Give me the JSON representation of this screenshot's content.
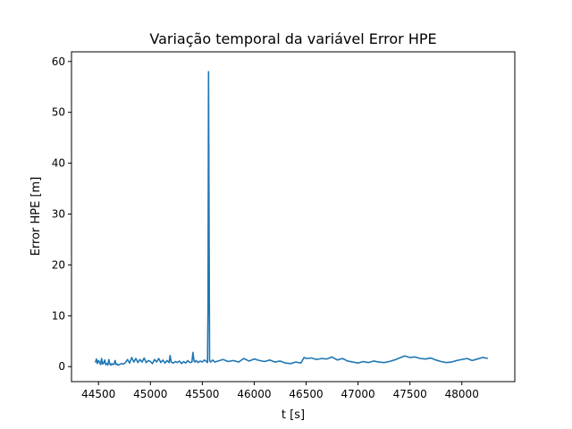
{
  "chart_data": {
    "type": "line",
    "title": "Variação temporal da variável Error HPE",
    "xlabel": "t [s]",
    "ylabel": "Error HPE [m]",
    "xlim": [
      44240,
      48510
    ],
    "ylim": [
      -2.95,
      61.9
    ],
    "xticks": [
      44500,
      45000,
      45500,
      46000,
      46500,
      47000,
      47500,
      48000
    ],
    "yticks": [
      0,
      10,
      20,
      30,
      40,
      50,
      60
    ],
    "grid": false,
    "legend": "none",
    "colors": {
      "series": "#1f77b4"
    },
    "series": [
      {
        "x": [
          44470,
          44480,
          44490,
          44500,
          44510,
          44520,
          44530,
          44540,
          44550,
          44560,
          44570,
          44580,
          44590,
          44600,
          44610,
          44620,
          44630,
          44640,
          44650,
          44660,
          44670,
          44680,
          44690,
          44700,
          44720,
          44740,
          44760,
          44780,
          44800,
          44820,
          44840,
          44860,
          44880,
          44900,
          44920,
          44940,
          44960,
          44980,
          45000,
          45020,
          45040,
          45060,
          45080,
          45100,
          45120,
          45140,
          45160,
          45180,
          45190,
          45200,
          45220,
          45240,
          45260,
          45280,
          45300,
          45320,
          45340,
          45360,
          45380,
          45400,
          45410,
          45420,
          45430,
          45440,
          45460,
          45480,
          45500,
          45520,
          45540,
          45550,
          45555,
          45560,
          45565,
          45570,
          45575,
          45580,
          45600,
          45620,
          45650,
          45700,
          45750,
          45800,
          45850,
          45900,
          45950,
          46000,
          46050,
          46100,
          46150,
          46200,
          46250,
          46300,
          46350,
          46400,
          46450,
          46480,
          46500,
          46550,
          46600,
          46650,
          46700,
          46750,
          46800,
          46850,
          46900,
          46950,
          47000,
          47050,
          47100,
          47150,
          47200,
          47250,
          47300,
          47350,
          47400,
          47450,
          47500,
          47550,
          47600,
          47650,
          47700,
          47750,
          47800,
          47850,
          47900,
          47950,
          48000,
          48050,
          48100,
          48150,
          48200,
          48250
        ],
        "values": [
          0.8,
          1.5,
          0.6,
          1.2,
          0.9,
          0.4,
          1.6,
          0.5,
          0.7,
          1.3,
          0.4,
          0.6,
          0.3,
          1.4,
          0.5,
          0.3,
          0.6,
          0.4,
          0.5,
          1.2,
          0.4,
          0.5,
          0.3,
          0.4,
          0.6,
          0.5,
          0.8,
          1.4,
          0.7,
          1.8,
          0.9,
          1.6,
          0.8,
          1.4,
          0.9,
          1.7,
          0.8,
          1.2,
          1.0,
          0.6,
          1.4,
          0.9,
          1.6,
          0.8,
          1.3,
          0.7,
          1.2,
          0.8,
          2.2,
          0.9,
          0.7,
          1.0,
          0.8,
          1.1,
          0.6,
          1.0,
          0.7,
          1.2,
          0.8,
          0.9,
          2.8,
          1.1,
          0.9,
          1.2,
          0.8,
          1.1,
          0.9,
          1.3,
          1.0,
          0.8,
          12.0,
          58.0,
          30.0,
          1.2,
          1.0,
          0.9,
          1.3,
          0.9,
          1.1,
          1.4,
          1.0,
          1.2,
          0.9,
          1.6,
          1.1,
          1.5,
          1.2,
          1.0,
          1.3,
          0.9,
          1.1,
          0.7,
          0.6,
          0.9,
          0.7,
          1.8,
          1.6,
          1.7,
          1.4,
          1.6,
          1.5,
          1.9,
          1.3,
          1.6,
          1.1,
          0.9,
          0.7,
          1.0,
          0.8,
          1.1,
          0.9,
          0.8,
          1.0,
          1.3,
          1.7,
          2.1,
          1.8,
          1.9,
          1.6,
          1.5,
          1.7,
          1.3,
          1.0,
          0.8,
          0.9,
          1.2,
          1.4,
          1.6,
          1.2,
          1.5,
          1.8,
          1.6
        ]
      }
    ]
  }
}
